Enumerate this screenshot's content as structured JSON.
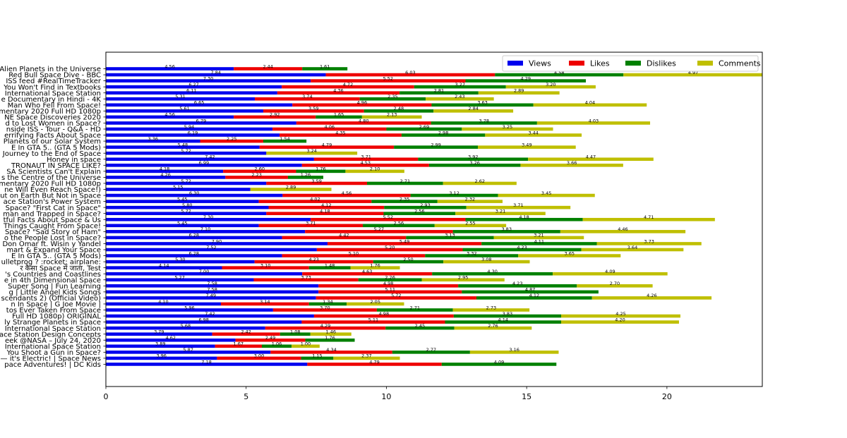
{
  "chart_data": {
    "type": "bar",
    "orientation": "horizontal",
    "stacked": true,
    "xlim": [
      0,
      23.4
    ],
    "xticks": [
      "0",
      "5",
      "10",
      "15",
      "20"
    ],
    "xlabel": "",
    "ylabel": "",
    "title": "",
    "legend_position": "top-right",
    "grid": false,
    "categories": [
      "Alien Planets in the Universe",
      "Red Bull Space Dive - BBC",
      "ISS feed #RealTimeTracker",
      "You Won't Find in Textbooks",
      "International Space Station",
      "e Documentary in Hindi - 4K",
      "Man Who Fell From Space!",
      "mentary 2020 Full HD 1080p",
      "NE Space Discoveries 2020",
      "d to Lost Women in Space?",
      "nside ISS - Tour - Q&A - HD",
      "errifying Facts About Space",
      "Planets of our Solar System",
      "E In GTA 5.. (GTA 5 Mods)",
      "Journey to the End of Space",
      "Honey in space",
      "TRONAUT IN SPACE LIKE?",
      "SA Scientists Can't Explain",
      "s the Centre of the Universe",
      "mentary 2020 Full HD 1080p",
      "ne Will Even Reach Space!)",
      "ut on Earth But Not in Space",
      "ace Station's Power System",
      "Space? \"First Cat in Space\"",
      "man and Trapped in Space?",
      "tful Facts About Space & Us",
      "Things Caught From Space!",
      "Space? \"Sad Story of Ham\"",
      "o the People Lost in Space?",
      "Don Omar ft. Wisin y Yandel",
      "mart & Expand Your Space",
      "E In GTA 5.. (GTA 5 Mods)",
      "ulletprog ? :rocket: airplane:",
      "र कैसा Space में जाता, Test",
      "'s Countries and Coastlines",
      "e in 4th Dimensional Space",
      "Super Song | Fun Learning",
      "g | Little Angel Kids Songs",
      "scendants 2) (Official Video)",
      "n In Space | G Joe Movie |",
      "tos Ever Taken From Space",
      "Full HD 1080p) ORIGINAL",
      "ly Strange Planets in Space",
      "International Space Station",
      "ace Station Design Concepts",
      "eek @NASA – July 24, 2020",
      "International Space Station",
      "You Shoot a Gun in Space?",
      "— it's Electric! | Space News",
      "pace Adventures! | DC Kids"
    ],
    "series": [
      {
        "name": "Views",
        "color": "#0000ee",
        "values": [
          4.56,
          7.84,
          7.3,
          6.27,
          6.11,
          5.31,
          6.65,
          5.61,
          4.56,
          6.79,
          5.94,
          6.19,
          3.36,
          5.48,
          5.72,
          7.42,
          6.99,
          4.18,
          4.26,
          5.72,
          5.15,
          6.3,
          5.45,
          5.8,
          5.72,
          7.3,
          5.45,
          7.1,
          6.28,
          7.9,
          7.52,
          6.28,
          5.3,
          4.14,
          7.0,
          5.27,
          7.58,
          7.58,
          7.49,
          4.1,
          5.96,
          7.42,
          6.98,
          5.68,
          3.79,
          4.62,
          3.89,
          5.87,
          3.96,
          7.18
        ]
      },
      {
        "name": "Likes",
        "color": "#ee0000",
        "values": [
          2.44,
          6.03,
          5.52,
          4.72,
          4.36,
          3.74,
          4.96,
          3.59,
          2.92,
          4.8,
          4.06,
          4.35,
          2.25,
          4.79,
          0,
          3.71,
          4.53,
          2.6,
          2.23,
          3.59,
          0,
          4.56,
          4.02,
          4.12,
          4.18,
          5.52,
          3.71,
          5.27,
          4.42,
          5.49,
          5.2,
          5.1,
          4.23,
          3.1,
          4.63,
          3.73,
          4.98,
          5.11,
          5.72,
          3.14,
          3.7,
          4.98,
          5.11,
          4.29,
          2.42,
          2.49,
          1.67,
          4.34,
          3.0,
          4.79
        ]
      },
      {
        "name": "Dislikes",
        "color": "#008000",
        "values": [
          1.61,
          4.58,
          4.29,
          3.27,
          2.81,
          2.35,
          3.63,
          2.48,
          1.65,
          3.78,
          2.69,
          2.98,
          1.54,
          2.99,
          0,
          3.92,
          3.26,
          1.76,
          1.26,
          2.71,
          0,
          3.12,
          2.35,
          2.93,
          2.56,
          4.18,
          2.56,
          3.83,
          3.13,
          4.11,
          4.23,
          3.32,
          2.5,
          1.48,
          4.3,
          2.26,
          4.23,
          4.87,
          4.12,
          1.34,
          2.71,
          3.83,
          4.14,
          2.45,
          1.08,
          1.76,
          1.06,
          2.77,
          1.15,
          4.09
        ]
      },
      {
        "name": "Comments",
        "color": "#bfbf00",
        "values": [
          0,
          4.97,
          0,
          3.2,
          2.89,
          2.43,
          4.04,
          2.84,
          2.13,
          4.03,
          3.25,
          3.44,
          0,
          3.49,
          3.24,
          4.47,
          3.66,
          2.1,
          0,
          2.62,
          2.89,
          3.45,
          2.32,
          3.71,
          3.21,
          4.71,
          2.55,
          4.46,
          3.21,
          3.73,
          3.64,
          3.65,
          3.08,
          1.76,
          4.09,
          2.95,
          2.7,
          0,
          4.26,
          2.05,
          2.73,
          4.25,
          4.2,
          2.76,
          1.46,
          0,
          1.0,
          3.16,
          2.37,
          0
        ]
      }
    ]
  }
}
